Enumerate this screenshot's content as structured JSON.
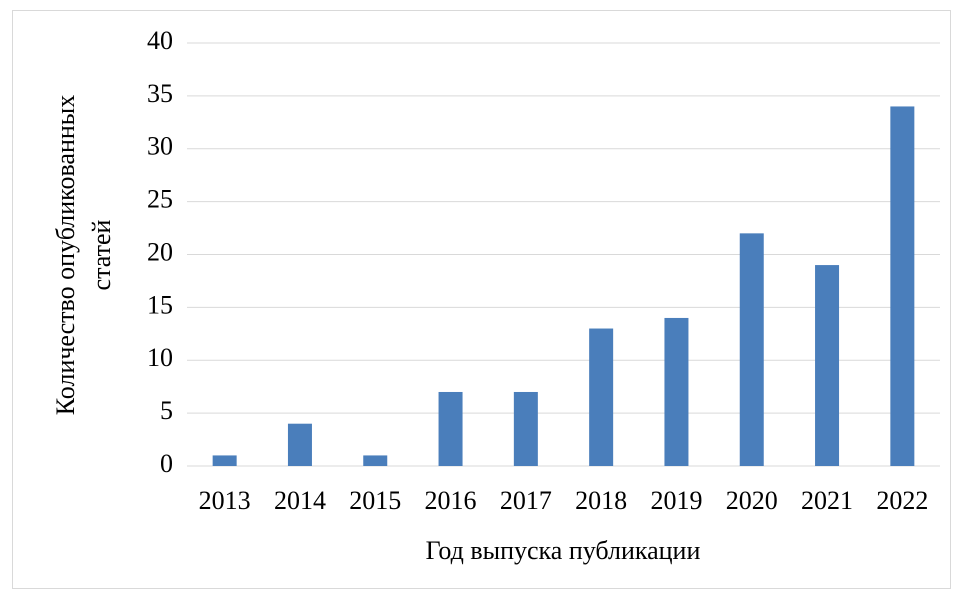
{
  "chart_data": {
    "type": "bar",
    "ylabel": [
      "Количество опубликованных",
      "статей"
    ],
    "xlabel": "Год выпуска публикации",
    "categories": [
      "2013",
      "2014",
      "2015",
      "2016",
      "2017",
      "2018",
      "2019",
      "2020",
      "2021",
      "2022"
    ],
    "values": [
      1,
      4,
      1,
      7,
      7,
      13,
      14,
      22,
      19,
      34
    ],
    "color": "#4a7ebb",
    "ylim": [
      0,
      40
    ],
    "yticks": [
      0,
      5,
      10,
      15,
      20,
      25,
      30,
      35,
      40
    ],
    "grid": true
  }
}
